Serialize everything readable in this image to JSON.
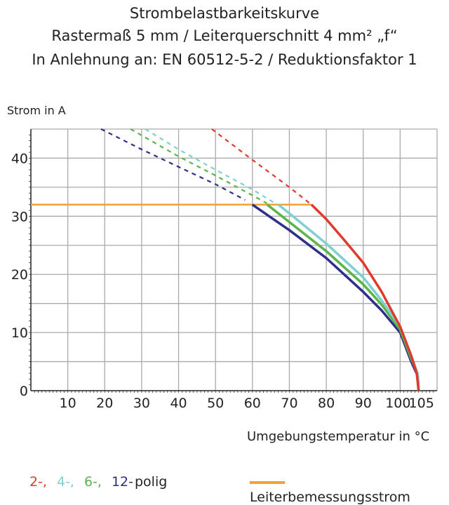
{
  "chart_data": {
    "type": "line",
    "title_lines": [
      "Strombelastbarkeitskurve",
      "Rastermaß 5 mm / Leiterquerschnitt 4 mm² „f“",
      "In Anlehnung an: EN 60512-5-2 / Reduktionsfaktor 1"
    ],
    "xlabel": "Umgebungstemperatur in °C",
    "ylabel": "Strom in A",
    "xlim": [
      0,
      110
    ],
    "ylim": [
      0,
      45
    ],
    "xticks": [
      "10",
      "20",
      "30",
      "40",
      "50",
      "60",
      "70",
      "80",
      "90",
      "100",
      "105"
    ],
    "xtick_values": [
      10,
      20,
      30,
      40,
      50,
      60,
      70,
      80,
      90,
      100,
      105
    ],
    "yticks": [
      "0",
      "10",
      "20",
      "30",
      "40"
    ],
    "ytick_values": [
      0,
      10,
      20,
      30,
      40
    ],
    "grid": true,
    "legend_placement": "bottom",
    "series": [
      {
        "name": "2-",
        "color": "#e03a2a",
        "solid": [
          [
            76,
            32
          ],
          [
            80,
            29.5
          ],
          [
            85,
            25.8
          ],
          [
            90,
            22
          ],
          [
            95,
            17
          ],
          [
            100,
            11
          ],
          [
            103,
            6
          ],
          [
            104.5,
            3
          ],
          [
            105,
            0
          ]
        ],
        "dashed": [
          [
            49,
            45
          ],
          [
            60,
            39.7
          ],
          [
            70,
            35
          ],
          [
            76,
            32
          ]
        ]
      },
      {
        "name": "4-",
        "color": "#7fd0d0",
        "solid": [
          [
            67,
            32
          ],
          [
            70,
            30.5
          ],
          [
            80,
            25.3
          ],
          [
            90,
            19.5
          ],
          [
            95,
            15.5
          ],
          [
            100,
            11
          ],
          [
            103,
            6
          ],
          [
            104.7,
            3
          ],
          [
            105,
            0
          ]
        ],
        "dashed": [
          [
            31,
            45
          ],
          [
            40,
            41.5
          ],
          [
            50,
            38
          ],
          [
            60,
            34.6
          ],
          [
            66,
            32.3
          ]
        ]
      },
      {
        "name": "6-",
        "color": "#5ab54a",
        "solid": [
          [
            64,
            32
          ],
          [
            70,
            29
          ],
          [
            80,
            24
          ],
          [
            90,
            18.3
          ],
          [
            95,
            14.8
          ],
          [
            100,
            10.5
          ],
          [
            103,
            5.5
          ],
          [
            104.7,
            3
          ],
          [
            105,
            0
          ]
        ],
        "dashed": [
          [
            27,
            45
          ],
          [
            40,
            40.3
          ],
          [
            50,
            37
          ],
          [
            60,
            33.6
          ],
          [
            64,
            32.2
          ]
        ]
      },
      {
        "name": "12-",
        "color": "#2e2f8a",
        "solid": [
          [
            60,
            32
          ],
          [
            70,
            27.6
          ],
          [
            80,
            22.8
          ],
          [
            90,
            17
          ],
          [
            95,
            13.8
          ],
          [
            100,
            10
          ],
          [
            103,
            5
          ],
          [
            104.8,
            2.5
          ],
          [
            105,
            0
          ]
        ],
        "dashed": [
          [
            19,
            45
          ],
          [
            30,
            41.5
          ],
          [
            40,
            38.5
          ],
          [
            50,
            35.5
          ],
          [
            58,
            32.8
          ]
        ]
      },
      {
        "name": "Leiterbemessungsstrom",
        "color": "#f5a030",
        "solid": [
          [
            0,
            32
          ],
          [
            76,
            32
          ]
        ]
      }
    ]
  },
  "legend": {
    "items": [
      {
        "label": "2-,",
        "color": "#e03a2a"
      },
      {
        "label": "4-,",
        "color": "#7fd0d0"
      },
      {
        "label": "6-,",
        "color": "#5ab54a"
      },
      {
        "label": "12-",
        "color": "#2e2f8a"
      }
    ],
    "suffix": "polig",
    "rated_label": "Leiterbemessungsstrom",
    "rated_color": "#f5a030"
  }
}
